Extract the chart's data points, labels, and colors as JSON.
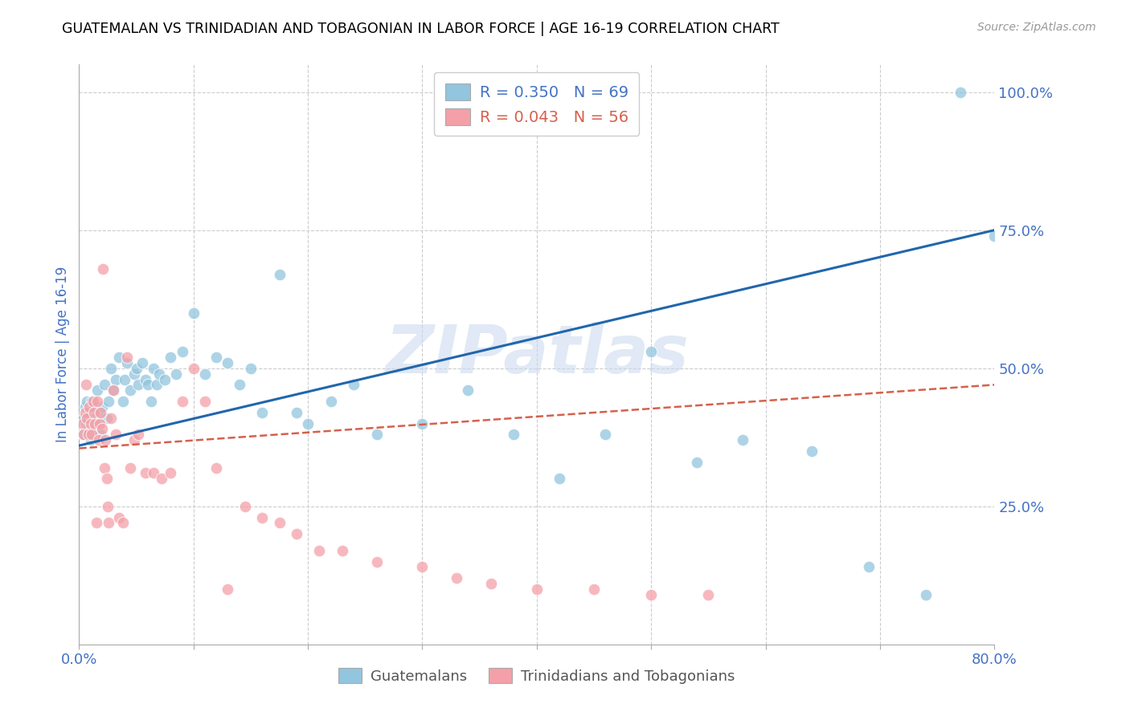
{
  "title": "GUATEMALAN VS TRINIDADIAN AND TOBAGONIAN IN LABOR FORCE | AGE 16-19 CORRELATION CHART",
  "source": "Source: ZipAtlas.com",
  "ylabel": "In Labor Force | Age 16-19",
  "xlim": [
    0.0,
    0.8
  ],
  "ylim": [
    0.0,
    1.05
  ],
  "xticks": [
    0.0,
    0.1,
    0.2,
    0.3,
    0.4,
    0.5,
    0.6,
    0.7,
    0.8
  ],
  "xticklabels": [
    "0.0%",
    "",
    "",
    "",
    "",
    "",
    "",
    "",
    "80.0%"
  ],
  "yticks": [
    0.0,
    0.25,
    0.5,
    0.75,
    1.0
  ],
  "yticklabels_right": [
    "",
    "25.0%",
    "50.0%",
    "75.0%",
    "100.0%"
  ],
  "blue_R": 0.35,
  "blue_N": 69,
  "pink_R": 0.043,
  "pink_N": 56,
  "blue_color": "#92c5de",
  "pink_color": "#f4a0a8",
  "blue_line_color": "#2166ac",
  "pink_line_color": "#d6604d",
  "axis_color": "#4472c4",
  "grid_color": "#cccccc",
  "watermark": "ZIPatlas",
  "blue_line_start_y": 0.36,
  "blue_line_end_y": 0.75,
  "pink_line_start_y": 0.355,
  "pink_line_end_y": 0.47,
  "blue_x": [
    0.003,
    0.004,
    0.005,
    0.006,
    0.007,
    0.008,
    0.009,
    0.01,
    0.011,
    0.012,
    0.013,
    0.014,
    0.015,
    0.016,
    0.017,
    0.018,
    0.019,
    0.02,
    0.022,
    0.024,
    0.026,
    0.028,
    0.03,
    0.032,
    0.035,
    0.038,
    0.04,
    0.042,
    0.045,
    0.048,
    0.05,
    0.052,
    0.055,
    0.058,
    0.06,
    0.063,
    0.065,
    0.068,
    0.07,
    0.075,
    0.08,
    0.085,
    0.09,
    0.1,
    0.11,
    0.12,
    0.13,
    0.14,
    0.15,
    0.16,
    0.175,
    0.19,
    0.2,
    0.22,
    0.24,
    0.26,
    0.3,
    0.34,
    0.38,
    0.42,
    0.46,
    0.5,
    0.54,
    0.58,
    0.64,
    0.69,
    0.74,
    0.77,
    0.8
  ],
  "blue_y": [
    0.38,
    0.41,
    0.43,
    0.4,
    0.44,
    0.39,
    0.42,
    0.37,
    0.44,
    0.4,
    0.43,
    0.41,
    0.39,
    0.46,
    0.4,
    0.42,
    0.38,
    0.43,
    0.47,
    0.41,
    0.44,
    0.5,
    0.46,
    0.48,
    0.52,
    0.44,
    0.48,
    0.51,
    0.46,
    0.49,
    0.5,
    0.47,
    0.51,
    0.48,
    0.47,
    0.44,
    0.5,
    0.47,
    0.49,
    0.48,
    0.52,
    0.49,
    0.53,
    0.6,
    0.49,
    0.52,
    0.51,
    0.47,
    0.5,
    0.42,
    0.67,
    0.42,
    0.4,
    0.44,
    0.47,
    0.38,
    0.4,
    0.46,
    0.38,
    0.3,
    0.38,
    0.53,
    0.33,
    0.37,
    0.35,
    0.14,
    0.09,
    1.0,
    0.74
  ],
  "pink_x": [
    0.003,
    0.004,
    0.005,
    0.006,
    0.007,
    0.008,
    0.009,
    0.01,
    0.011,
    0.012,
    0.013,
    0.014,
    0.015,
    0.016,
    0.017,
    0.018,
    0.019,
    0.02,
    0.021,
    0.022,
    0.023,
    0.024,
    0.025,
    0.026,
    0.028,
    0.03,
    0.032,
    0.035,
    0.038,
    0.042,
    0.045,
    0.048,
    0.052,
    0.058,
    0.065,
    0.072,
    0.08,
    0.09,
    0.1,
    0.11,
    0.12,
    0.13,
    0.145,
    0.16,
    0.175,
    0.19,
    0.21,
    0.23,
    0.26,
    0.3,
    0.33,
    0.36,
    0.4,
    0.45,
    0.5,
    0.55
  ],
  "pink_y": [
    0.4,
    0.38,
    0.42,
    0.47,
    0.41,
    0.38,
    0.43,
    0.4,
    0.38,
    0.44,
    0.42,
    0.4,
    0.22,
    0.44,
    0.37,
    0.4,
    0.42,
    0.39,
    0.68,
    0.32,
    0.37,
    0.3,
    0.25,
    0.22,
    0.41,
    0.46,
    0.38,
    0.23,
    0.22,
    0.52,
    0.32,
    0.37,
    0.38,
    0.31,
    0.31,
    0.3,
    0.31,
    0.44,
    0.5,
    0.44,
    0.32,
    0.1,
    0.25,
    0.23,
    0.22,
    0.2,
    0.17,
    0.17,
    0.15,
    0.14,
    0.12,
    0.11,
    0.1,
    0.1,
    0.09,
    0.09
  ]
}
